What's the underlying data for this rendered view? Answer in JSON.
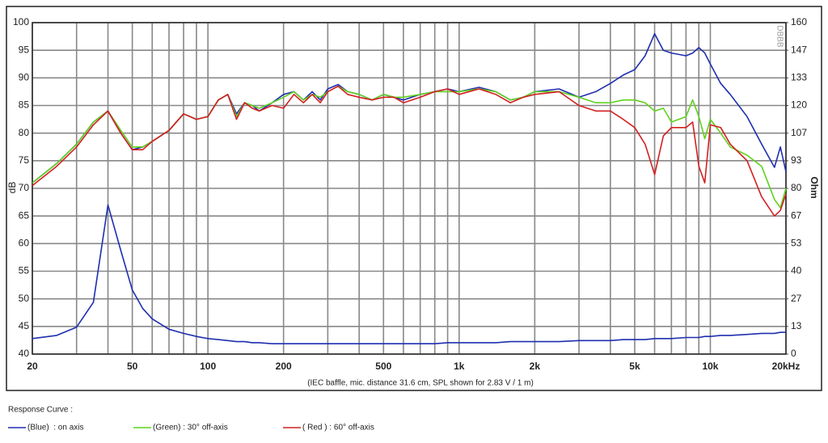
{
  "chart_data": {
    "type": "line",
    "x_label": "(IEC baffle, mic. distance 31.6 cm, SPL shown for 2.83 V / 1 m)",
    "y_label": "dB",
    "y2_label": "Ohm",
    "watermark": "DBBB",
    "legend_title": "Response Curve :",
    "x_log": true,
    "grid": true,
    "xlim": [
      20,
      20000
    ],
    "xticks": [
      20,
      50,
      100,
      200,
      500,
      {
        "value": 1000,
        "label": "1k"
      },
      {
        "value": 2000,
        "label": "2k"
      },
      {
        "value": 5000,
        "label": "5k"
      },
      {
        "value": 10000,
        "label": "10k"
      },
      {
        "value": 20000,
        "label": "20kHz"
      }
    ],
    "xminor": [
      30,
      40,
      60,
      70,
      80,
      90,
      300,
      400,
      600,
      700,
      800,
      900,
      3000,
      4000,
      6000,
      7000,
      8000,
      9000
    ],
    "ylim": [
      40,
      100
    ],
    "yticks": [
      40,
      45,
      50,
      55,
      60,
      65,
      70,
      75,
      80,
      85,
      90,
      95,
      100
    ],
    "y2lim": [
      0,
      160
    ],
    "y2ticks": [
      0,
      {
        "value": 13.333,
        "label": "13"
      },
      {
        "value": 26.667,
        "label": "27"
      },
      40,
      {
        "value": 53.333,
        "label": "53"
      },
      {
        "value": 66.667,
        "label": "67"
      },
      80,
      {
        "value": 93.333,
        "label": "93"
      },
      {
        "value": 106.667,
        "label": "107"
      },
      120,
      {
        "value": 133.333,
        "label": "133"
      },
      {
        "value": 146.667,
        "label": "147"
      },
      160
    ],
    "x": [
      20,
      25,
      30,
      35,
      40,
      45,
      50,
      55,
      60,
      70,
      80,
      90,
      100,
      110,
      120,
      130,
      140,
      150,
      160,
      180,
      200,
      220,
      240,
      260,
      280,
      300,
      330,
      360,
      400,
      450,
      500,
      550,
      600,
      700,
      800,
      900,
      1000,
      1200,
      1400,
      1600,
      1800,
      2000,
      2500,
      3000,
      3500,
      4000,
      4500,
      5000,
      5500,
      6000,
      6500,
      7000,
      8000,
      8500,
      9000,
      9500,
      10000,
      11000,
      12000,
      14000,
      16000,
      18000,
      19000,
      20000
    ],
    "series": [
      {
        "name": "(Blue)  : on axis",
        "color": "#1f2fb0",
        "values": [
          71,
          74.5,
          78,
          82,
          84,
          80,
          77,
          77.5,
          78.5,
          80.5,
          83.5,
          82.5,
          83,
          86,
          87,
          83.5,
          85.5,
          85,
          84,
          85.5,
          87,
          87.5,
          86,
          87.5,
          86,
          88,
          88.8,
          87.5,
          87,
          86,
          87,
          86.5,
          86,
          87,
          87.5,
          88,
          87.5,
          88.3,
          87.5,
          86,
          86.5,
          87.5,
          88,
          86.5,
          87.5,
          89,
          90.5,
          91.5,
          94,
          98,
          95,
          94.5,
          94,
          94.5,
          95.5,
          94.5,
          92.5,
          89,
          87,
          83,
          78,
          73.8,
          77.5,
          73
        ]
      },
      {
        "name": "(Green) : 30° off-axis",
        "color": "#5fd21e",
        "values": [
          71,
          74.5,
          78,
          82,
          84,
          80.5,
          77.5,
          77.5,
          78.5,
          80.5,
          83.5,
          82.5,
          83,
          86,
          87,
          83,
          85.5,
          85,
          84.5,
          85.5,
          86.5,
          87.5,
          86,
          87,
          86.5,
          87.5,
          88.5,
          87.5,
          87,
          86,
          87,
          86.5,
          86.5,
          87,
          87.5,
          87.5,
          87.5,
          88,
          87.5,
          86,
          86.5,
          87.5,
          87.5,
          86.5,
          85.5,
          85.5,
          86,
          86,
          85.5,
          84,
          84.5,
          82,
          83,
          86,
          83,
          79,
          82.5,
          80,
          77.5,
          76,
          74,
          68,
          66.5,
          70
        ]
      },
      {
        "name": "( Red ) : 60° off-axis",
        "color": "#d42020",
        "values": [
          70.5,
          74,
          77.5,
          81.5,
          84,
          80,
          77,
          77,
          78.5,
          80.5,
          83.5,
          82.5,
          83,
          86,
          87,
          82.5,
          85.5,
          84.5,
          84,
          85,
          84.5,
          87,
          85.5,
          87,
          85.5,
          87.5,
          88.5,
          87,
          86.5,
          86,
          86.5,
          86.5,
          85.5,
          86.5,
          87.5,
          88,
          87,
          88,
          87,
          85.5,
          86.5,
          87,
          87.5,
          85,
          84,
          84,
          82.5,
          81,
          78,
          72.5,
          79.5,
          81,
          81,
          82,
          74,
          71,
          81.5,
          81,
          78,
          75,
          68.5,
          65,
          66,
          69
        ]
      },
      {
        "axis": "y2",
        "color": "#1f2fb0",
        "values": [
          7.5,
          9,
          13,
          25,
          72,
          50,
          31,
          22,
          17,
          12,
          10,
          8.5,
          7.5,
          7,
          6.5,
          6,
          6,
          5.5,
          5.5,
          5,
          5,
          5,
          5,
          5,
          5,
          5,
          5,
          5,
          5,
          5,
          5,
          5,
          5,
          5,
          5,
          5.5,
          5.5,
          5.5,
          5.5,
          6,
          6,
          6,
          6,
          6.5,
          6.5,
          6.5,
          7,
          7,
          7,
          7.5,
          7.5,
          7.5,
          8,
          8,
          8,
          8.5,
          8.5,
          9,
          9,
          9.5,
          10,
          10,
          10.5,
          10.5
        ]
      }
    ]
  }
}
